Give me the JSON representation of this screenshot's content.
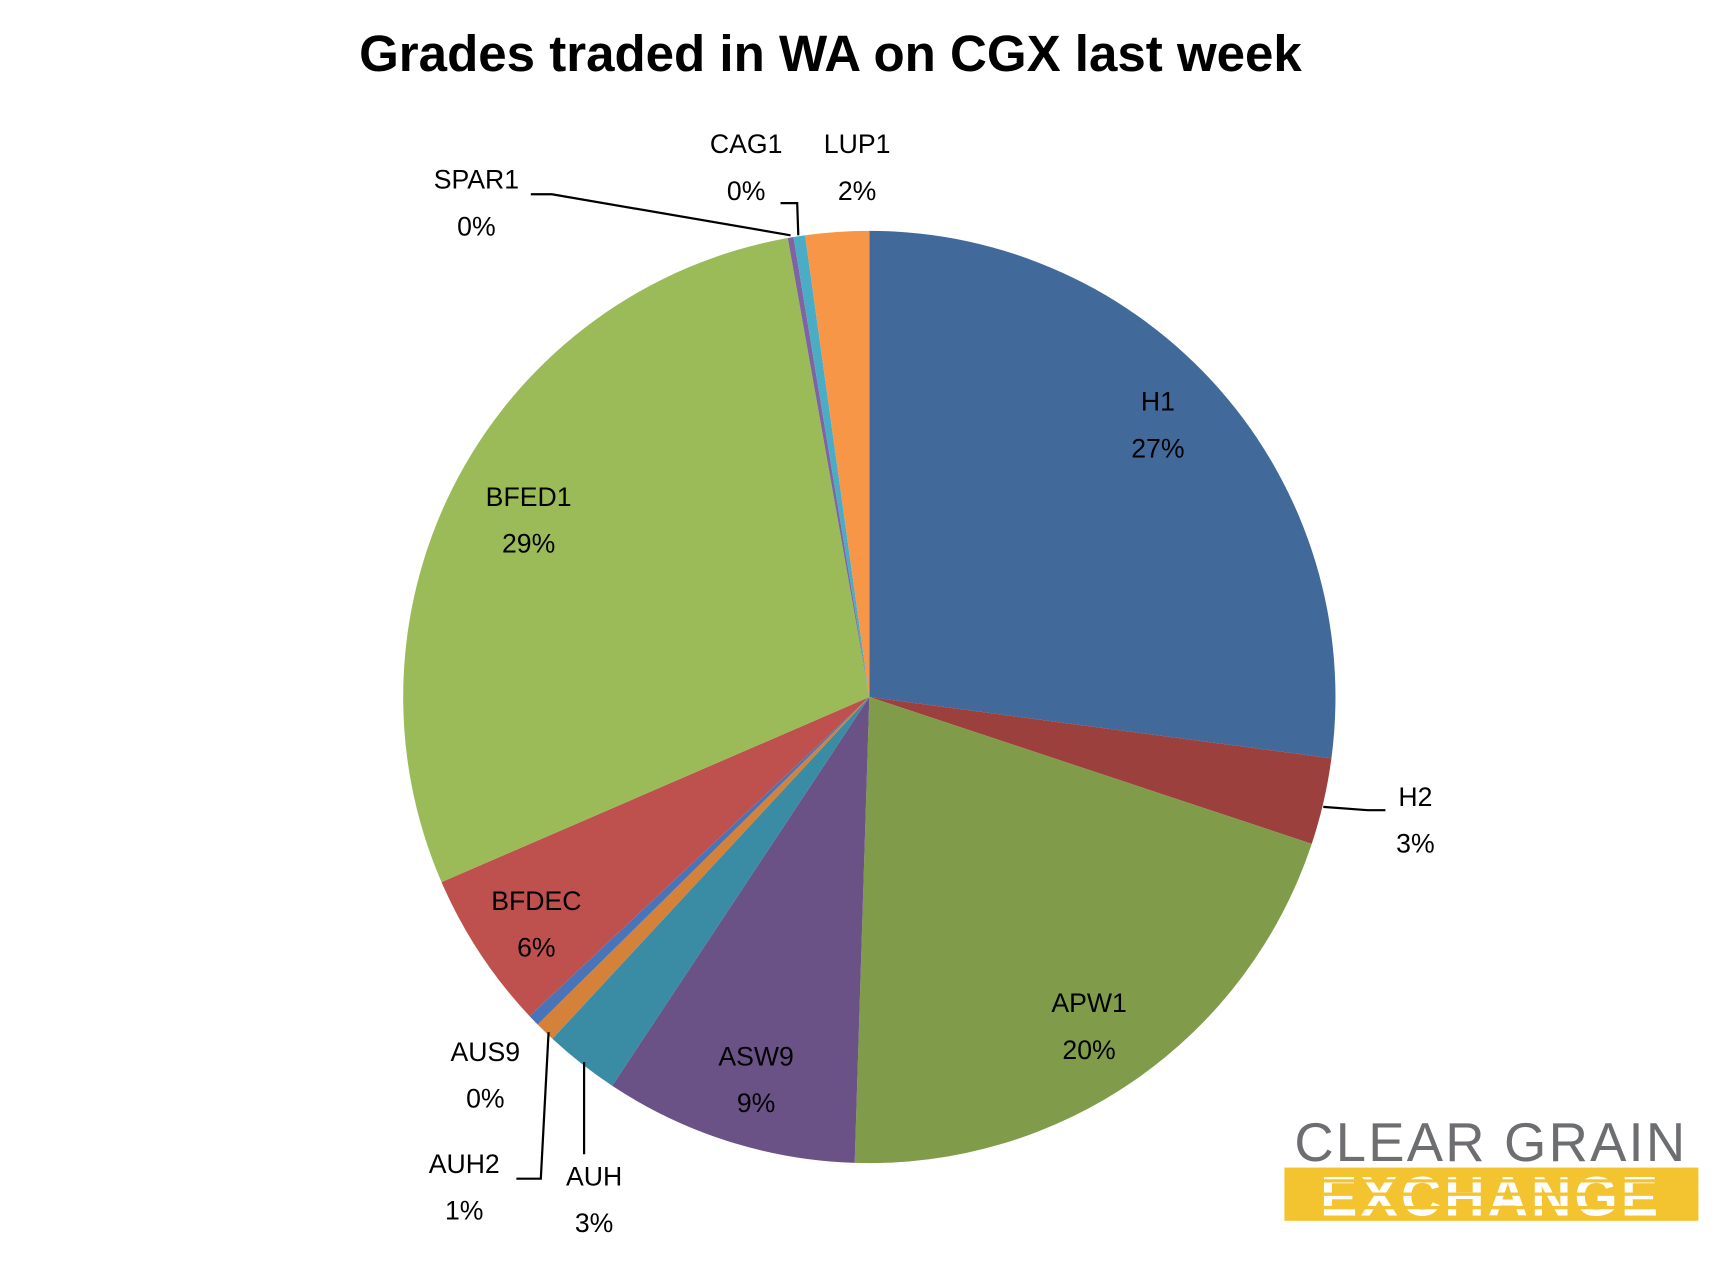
{
  "chart_data": {
    "type": "pie",
    "title": "Grades traded in WA on CGX last week",
    "categories": [
      "H1",
      "H2",
      "APW1",
      "ASW9",
      "AUH",
      "AUH2",
      "AUS9",
      "BFDEC",
      "BFED1",
      "SPAR1",
      "CAG1",
      "LUP1"
    ],
    "values": [
      27.1,
      3.0,
      20.4,
      8.8,
      2.6,
      0.7,
      0.4,
      5.5,
      28.7,
      0.2,
      0.4,
      2.2
    ],
    "value_labels": [
      "27%",
      "3%",
      "20%",
      "9%",
      "3%",
      "1%",
      "0%",
      "6%",
      "29%",
      "0%",
      "0%",
      "2%"
    ],
    "colors": [
      "#41699a",
      "#9c403d",
      "#809c4a",
      "#6a5287",
      "#3a8ca4",
      "#d4813a",
      "#4a74b8",
      "#be504e",
      "#9bbb59",
      "#8064a2",
      "#4bacc6",
      "#f79646"
    ]
  },
  "logo": {
    "line1": "CLEAR GRAIN",
    "line2": "EXCHANGE"
  }
}
